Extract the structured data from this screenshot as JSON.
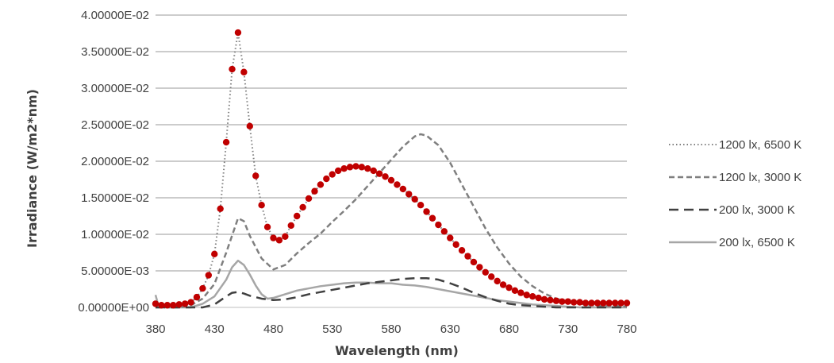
{
  "chart_data": {
    "type": "line",
    "title": "",
    "xlabel": "Wavelength (nm)",
    "ylabel": "Irradiance (W/m2*nm)",
    "xlim": [
      380,
      780
    ],
    "ylim": [
      0,
      0.04
    ],
    "x_ticks": [
      "380",
      "430",
      "480",
      "530",
      "580",
      "630",
      "680",
      "730",
      "780"
    ],
    "y_ticks": [
      "0.00000E+00",
      "5.00000E-03",
      "1.00000E-02",
      "1.50000E-02",
      "2.00000E-02",
      "2.50000E-02",
      "3.00000E-02",
      "3.50000E-02",
      "4.00000E-02"
    ],
    "grid": "horizontal",
    "legend_position": "right",
    "series": [
      {
        "name": "1200 lx, 6500 K",
        "line_style": "dotted",
        "color": "#7f7f7f",
        "marker_color": "#c00000",
        "points": [
          [
            380,
            0.0005
          ],
          [
            385,
            0.0003
          ],
          [
            390,
            0.0003
          ],
          [
            395,
            0.0003
          ],
          [
            400,
            0.0004
          ],
          [
            405,
            0.0005
          ],
          [
            410,
            0.0007
          ],
          [
            415,
            0.0014
          ],
          [
            420,
            0.0026
          ],
          [
            425,
            0.0044
          ],
          [
            430,
            0.0073
          ],
          [
            435,
            0.0135
          ],
          [
            440,
            0.0226
          ],
          [
            445,
            0.0326
          ],
          [
            450,
            0.0376
          ],
          [
            455,
            0.0322
          ],
          [
            460,
            0.0248
          ],
          [
            465,
            0.018
          ],
          [
            470,
            0.014
          ],
          [
            475,
            0.011
          ],
          [
            480,
            0.0095
          ],
          [
            485,
            0.0092
          ],
          [
            490,
            0.0097
          ],
          [
            495,
            0.0112
          ],
          [
            500,
            0.0125
          ],
          [
            505,
            0.0137
          ],
          [
            510,
            0.0149
          ],
          [
            515,
            0.0159
          ],
          [
            520,
            0.0168
          ],
          [
            525,
            0.0176
          ],
          [
            530,
            0.0182
          ],
          [
            535,
            0.0187
          ],
          [
            540,
            0.019
          ],
          [
            545,
            0.0192
          ],
          [
            550,
            0.0193
          ],
          [
            555,
            0.0192
          ],
          [
            560,
            0.019
          ],
          [
            565,
            0.0187
          ],
          [
            570,
            0.0183
          ],
          [
            575,
            0.0179
          ],
          [
            580,
            0.0174
          ],
          [
            585,
            0.0168
          ],
          [
            590,
            0.0162
          ],
          [
            595,
            0.0155
          ],
          [
            600,
            0.0148
          ],
          [
            605,
            0.014
          ],
          [
            610,
            0.0131
          ],
          [
            615,
            0.0122
          ],
          [
            620,
            0.0113
          ],
          [
            625,
            0.0104
          ],
          [
            630,
            0.0095
          ],
          [
            635,
            0.0086
          ],
          [
            640,
            0.0078
          ],
          [
            645,
            0.007
          ],
          [
            650,
            0.0062
          ],
          [
            655,
            0.0055
          ],
          [
            660,
            0.0048
          ],
          [
            665,
            0.0042
          ],
          [
            670,
            0.0036
          ],
          [
            675,
            0.0031
          ],
          [
            680,
            0.0027
          ],
          [
            685,
            0.0023
          ],
          [
            690,
            0.002
          ],
          [
            695,
            0.0017
          ],
          [
            700,
            0.0015
          ],
          [
            705,
            0.0013
          ],
          [
            710,
            0.0011
          ],
          [
            715,
            0.001
          ],
          [
            720,
            0.0009
          ],
          [
            725,
            0.0008
          ],
          [
            730,
            0.0008
          ],
          [
            735,
            0.0007
          ],
          [
            740,
            0.0007
          ],
          [
            745,
            0.0006
          ],
          [
            750,
            0.0006
          ],
          [
            755,
            0.0006
          ],
          [
            760,
            0.0006
          ],
          [
            765,
            0.0006
          ],
          [
            770,
            0.0006
          ],
          [
            775,
            0.0006
          ],
          [
            780,
            0.0006
          ]
        ]
      },
      {
        "name": "1200 lx, 3000 K",
        "line_style": "short-dash",
        "color": "#7f7f7f",
        "points": [
          [
            380,
            0.0
          ],
          [
            400,
            0.0
          ],
          [
            410,
            0.0003
          ],
          [
            420,
            0.0012
          ],
          [
            430,
            0.0032
          ],
          [
            440,
            0.0075
          ],
          [
            450,
            0.0122
          ],
          [
            455,
            0.0118
          ],
          [
            460,
            0.0098
          ],
          [
            470,
            0.0067
          ],
          [
            480,
            0.0052
          ],
          [
            490,
            0.0058
          ],
          [
            500,
            0.0074
          ],
          [
            510,
            0.0088
          ],
          [
            520,
            0.0101
          ],
          [
            530,
            0.0117
          ],
          [
            540,
            0.0132
          ],
          [
            550,
            0.0148
          ],
          [
            560,
            0.0166
          ],
          [
            570,
            0.0184
          ],
          [
            580,
            0.0202
          ],
          [
            590,
            0.022
          ],
          [
            600,
            0.0234
          ],
          [
            605,
            0.0237
          ],
          [
            610,
            0.0235
          ],
          [
            620,
            0.0222
          ],
          [
            630,
            0.0198
          ],
          [
            640,
            0.0168
          ],
          [
            650,
            0.0138
          ],
          [
            660,
            0.0108
          ],
          [
            670,
            0.0082
          ],
          [
            680,
            0.006
          ],
          [
            690,
            0.0042
          ],
          [
            700,
            0.0029
          ],
          [
            710,
            0.0019
          ],
          [
            720,
            0.0012
          ],
          [
            730,
            0.0008
          ],
          [
            740,
            0.0005
          ],
          [
            750,
            0.0003
          ],
          [
            760,
            0.0002
          ],
          [
            770,
            0.0002
          ],
          [
            780,
            0.0001
          ]
        ]
      },
      {
        "name": "200 lx, 3000 K",
        "line_style": "long-dash",
        "color": "#404040",
        "points": [
          [
            380,
            0.0
          ],
          [
            420,
            0.0
          ],
          [
            430,
            0.0004
          ],
          [
            440,
            0.0015
          ],
          [
            445,
            0.002
          ],
          [
            450,
            0.0021
          ],
          [
            455,
            0.0019
          ],
          [
            460,
            0.0016
          ],
          [
            470,
            0.0012
          ],
          [
            480,
            0.001
          ],
          [
            490,
            0.0011
          ],
          [
            500,
            0.0014
          ],
          [
            510,
            0.0018
          ],
          [
            520,
            0.0021
          ],
          [
            530,
            0.0024
          ],
          [
            540,
            0.0027
          ],
          [
            550,
            0.003
          ],
          [
            560,
            0.0033
          ],
          [
            570,
            0.0035
          ],
          [
            580,
            0.0037
          ],
          [
            590,
            0.0039
          ],
          [
            600,
            0.004
          ],
          [
            610,
            0.004
          ],
          [
            620,
            0.0038
          ],
          [
            630,
            0.0033
          ],
          [
            640,
            0.0027
          ],
          [
            650,
            0.002
          ],
          [
            660,
            0.0014
          ],
          [
            670,
            0.0009
          ],
          [
            680,
            0.0005
          ],
          [
            690,
            0.0003
          ],
          [
            700,
            0.0002
          ],
          [
            710,
            0.0001
          ],
          [
            720,
            0.0
          ],
          [
            780,
            0.0
          ]
        ]
      },
      {
        "name": "200 lx, 6500 K",
        "line_style": "solid",
        "color": "#a6a6a6",
        "points": [
          [
            380,
            0.0017
          ],
          [
            382,
            0.0005
          ],
          [
            390,
            0.0
          ],
          [
            410,
            0.0
          ],
          [
            420,
            0.0005
          ],
          [
            430,
            0.0015
          ],
          [
            440,
            0.0038
          ],
          [
            445,
            0.0055
          ],
          [
            450,
            0.0064
          ],
          [
            455,
            0.0058
          ],
          [
            460,
            0.0045
          ],
          [
            465,
            0.003
          ],
          [
            470,
            0.0018
          ],
          [
            475,
            0.0012
          ],
          [
            480,
            0.0013
          ],
          [
            490,
            0.0018
          ],
          [
            500,
            0.0023
          ],
          [
            510,
            0.0026
          ],
          [
            520,
            0.0029
          ],
          [
            530,
            0.0031
          ],
          [
            540,
            0.0033
          ],
          [
            550,
            0.0034
          ],
          [
            560,
            0.0034
          ],
          [
            570,
            0.0033
          ],
          [
            580,
            0.0033
          ],
          [
            590,
            0.0031
          ],
          [
            600,
            0.003
          ],
          [
            610,
            0.0028
          ],
          [
            620,
            0.0025
          ],
          [
            630,
            0.0022
          ],
          [
            640,
            0.0019
          ],
          [
            650,
            0.0016
          ],
          [
            660,
            0.0013
          ],
          [
            670,
            0.001
          ],
          [
            680,
            0.0008
          ],
          [
            690,
            0.0006
          ],
          [
            700,
            0.0004
          ],
          [
            710,
            0.0003
          ],
          [
            720,
            0.0002
          ],
          [
            730,
            0.0001
          ],
          [
            740,
            0.0
          ],
          [
            780,
            0.0
          ]
        ]
      }
    ]
  }
}
